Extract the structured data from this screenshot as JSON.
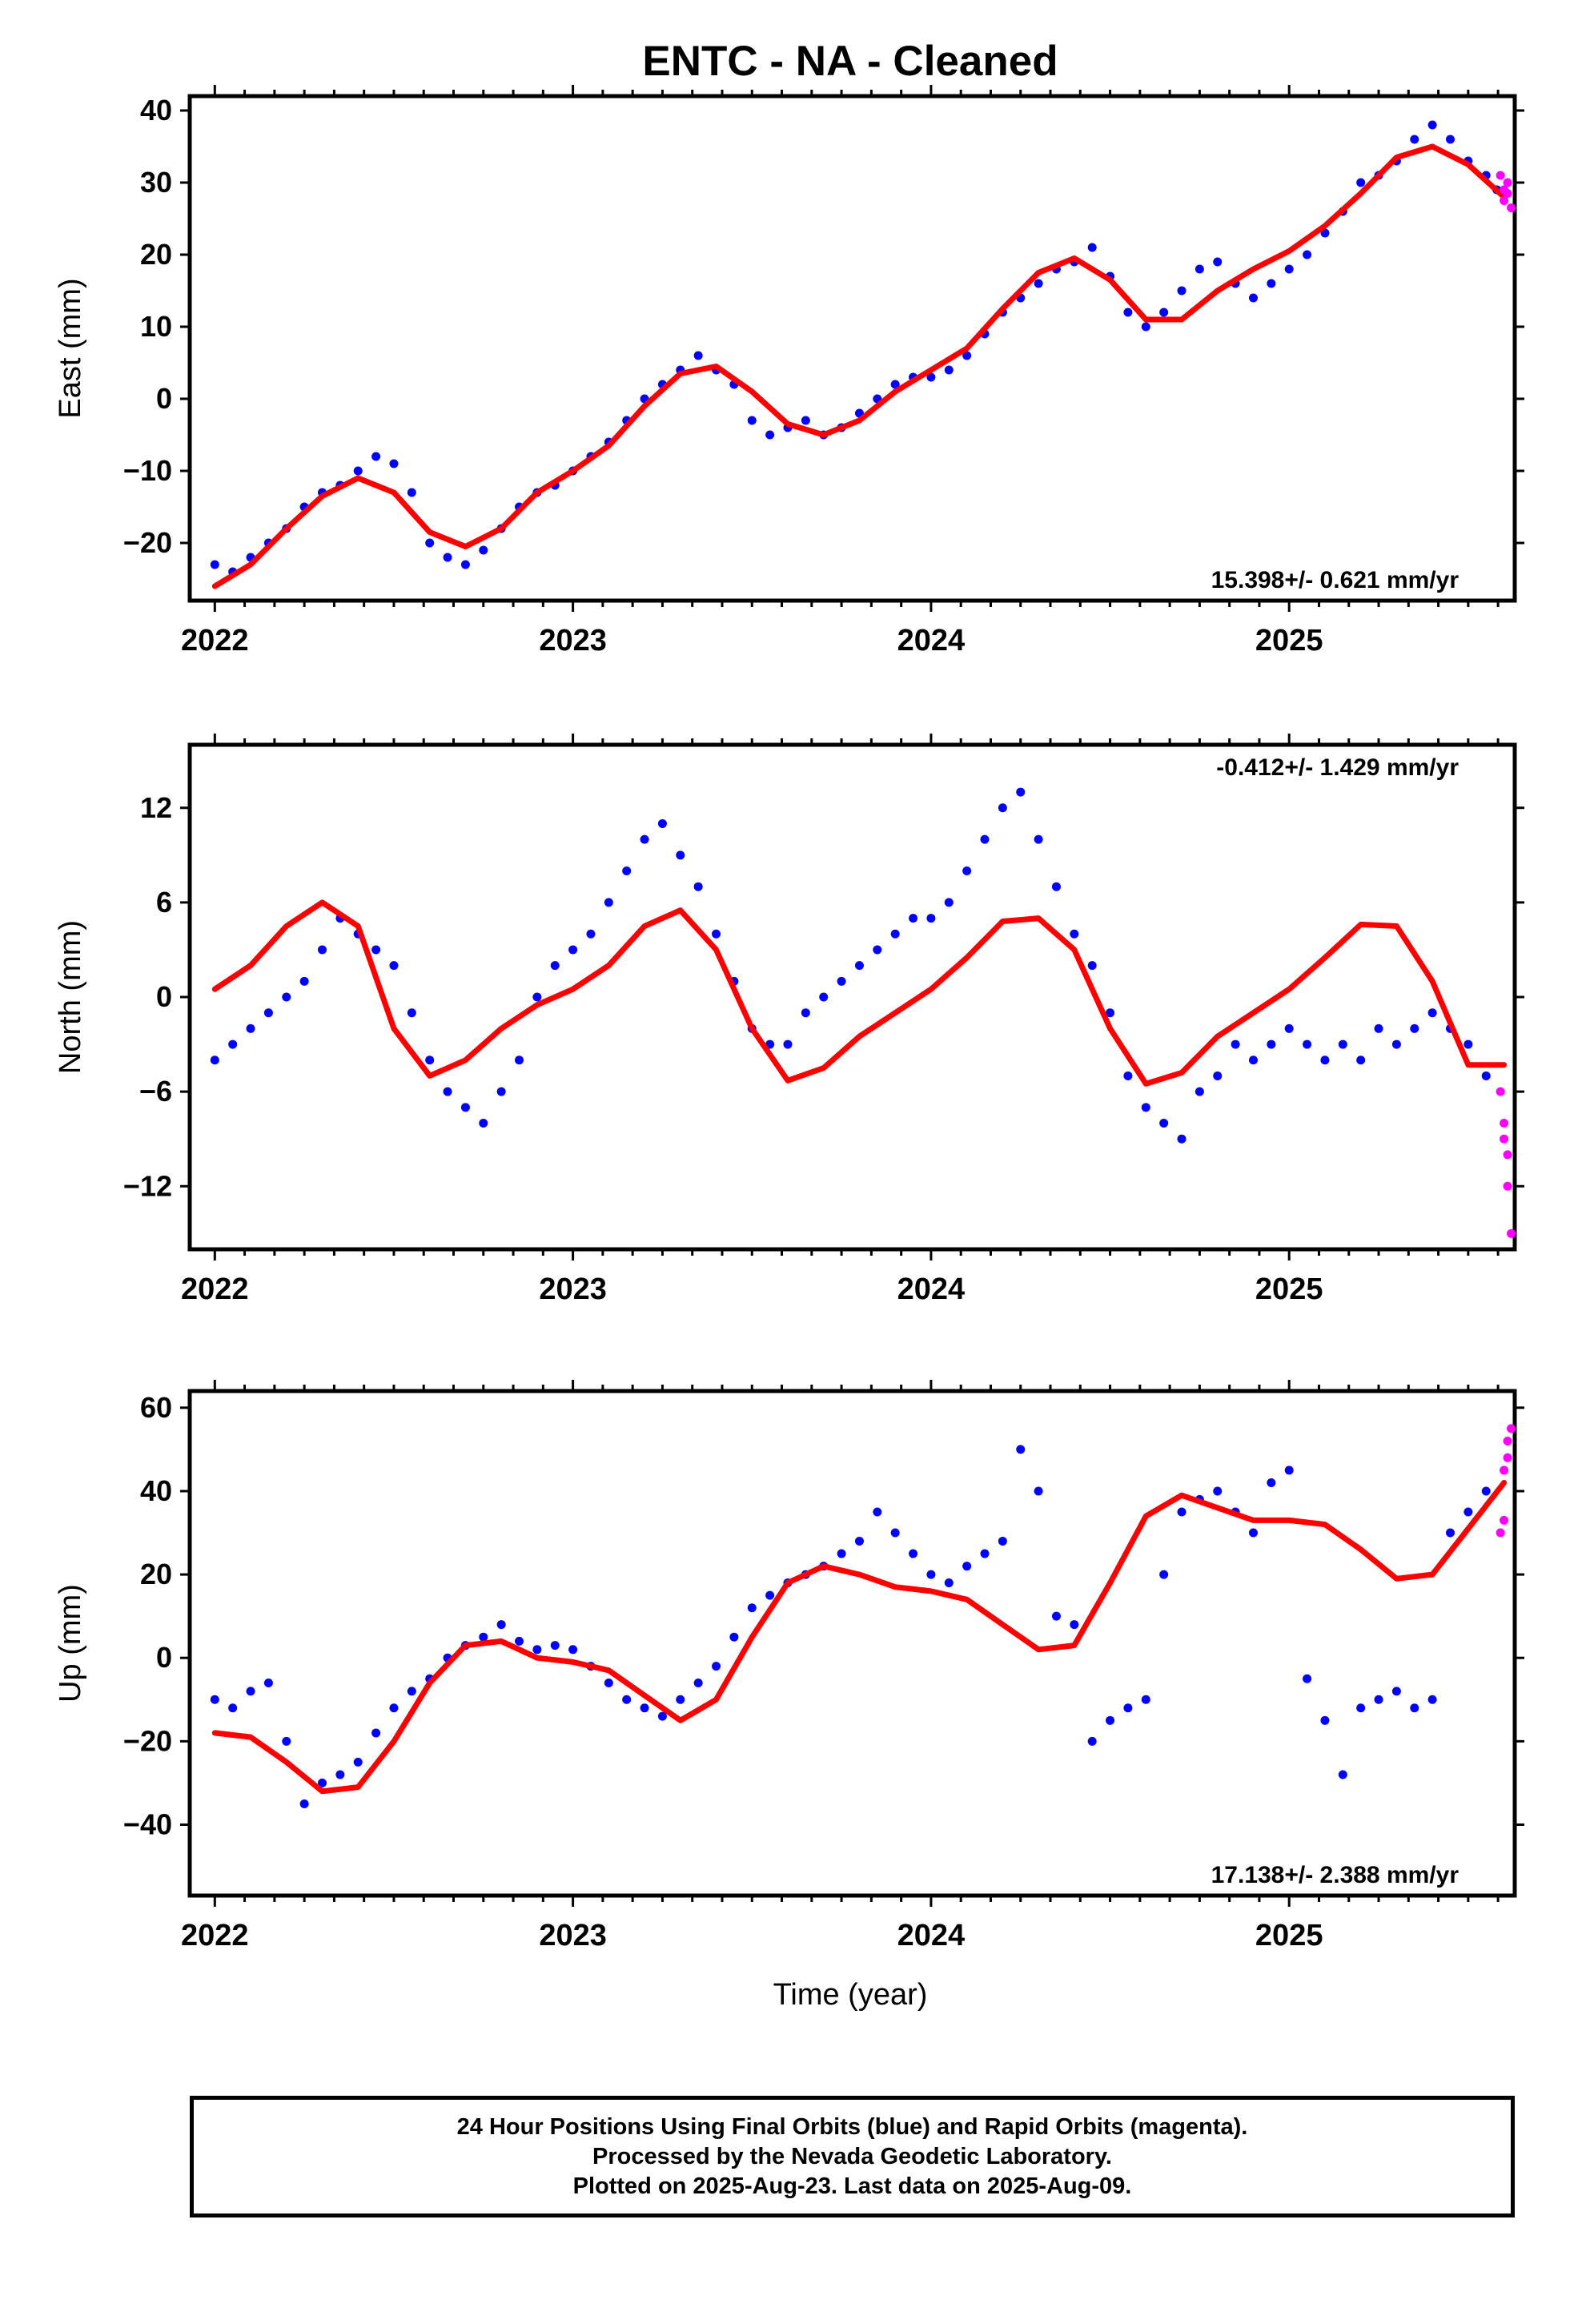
{
  "title": "ENTC  - NA - Cleaned",
  "xlabel": "Time (year)",
  "footer": {
    "line1": "24 Hour Positions Using Final Orbits (blue) and Rapid Orbits (magenta).",
    "line2": "Processed by the Nevada Geodetic Laboratory.",
    "line3": "Plotted on 2025-Aug-23. Last data on 2025-Aug-09."
  },
  "colors": {
    "final": "#0000ff",
    "rapid": "#ff00ff",
    "model": "#ff0000",
    "axis": "#000000"
  },
  "chart_data": [
    {
      "type": "scatter",
      "ylabel": "East (mm)",
      "rate": "15.398+/- 0.621 mm/yr",
      "rate_position": "bottom-right",
      "xlim": [
        1.0,
        7.0
      ],
      "xlim_years": [
        2021.93,
        2025.63
      ],
      "ylim": [
        -28,
        42
      ],
      "yticks": [
        -20,
        -10,
        0,
        10,
        20,
        30,
        40
      ],
      "xticks": [
        2022,
        2023,
        2024,
        2025
      ],
      "model_curve": {
        "x": [
          2022.0,
          2022.1,
          2022.2,
          2022.3,
          2022.4,
          2022.5,
          2022.6,
          2022.7,
          2022.8,
          2022.9,
          2023.0,
          2023.1,
          2023.2,
          2023.3,
          2023.4,
          2023.5,
          2023.6,
          2023.7,
          2023.8,
          2023.9,
          2024.0,
          2024.1,
          2024.2,
          2024.3,
          2024.4,
          2024.5,
          2024.6,
          2024.7,
          2024.8,
          2024.9,
          2025.0,
          2025.1,
          2025.2,
          2025.3,
          2025.4,
          2025.5,
          2025.6
        ],
        "y": [
          -26,
          -23,
          -18,
          -13.5,
          -11,
          -13,
          -18.5,
          -20.5,
          -18,
          -13,
          -10,
          -6.5,
          -1,
          3.5,
          4.5,
          1,
          -3.5,
          -5,
          -3,
          1,
          4,
          7,
          12.5,
          17.5,
          19.5,
          16.5,
          11,
          11,
          15,
          18,
          20.5,
          24,
          28.5,
          33.5,
          35,
          32.5,
          28
        ]
      },
      "final_points": {
        "x": [
          2022.0,
          2022.05,
          2022.1,
          2022.15,
          2022.2,
          2022.25,
          2022.3,
          2022.35,
          2022.4,
          2022.45,
          2022.5,
          2022.55,
          2022.6,
          2022.65,
          2022.7,
          2022.75,
          2022.8,
          2022.85,
          2022.9,
          2022.95,
          2023.0,
          2023.05,
          2023.1,
          2023.15,
          2023.2,
          2023.25,
          2023.3,
          2023.35,
          2023.4,
          2023.45,
          2023.5,
          2023.55,
          2023.6,
          2023.65,
          2023.7,
          2023.75,
          2023.8,
          2023.85,
          2023.9,
          2023.95,
          2024.0,
          2024.05,
          2024.1,
          2024.15,
          2024.2,
          2024.25,
          2024.3,
          2024.35,
          2024.4,
          2024.45,
          2024.5,
          2024.55,
          2024.6,
          2024.65,
          2024.7,
          2024.75,
          2024.8,
          2024.85,
          2024.9,
          2024.95,
          2025.0,
          2025.05,
          2025.1,
          2025.15,
          2025.2,
          2025.25,
          2025.3,
          2025.35,
          2025.4,
          2025.45,
          2025.5,
          2025.55,
          2025.58
        ],
        "y": [
          -23,
          -24,
          -22,
          -20,
          -18,
          -15,
          -13,
          -12,
          -10,
          -8,
          -9,
          -13,
          -20,
          -22,
          -23,
          -21,
          -18,
          -15,
          -13,
          -12,
          -10,
          -8,
          -6,
          -3,
          0,
          2,
          4,
          6,
          4,
          2,
          -3,
          -5,
          -4,
          -3,
          -5,
          -4,
          -2,
          0,
          2,
          3,
          3,
          4,
          6,
          9,
          12,
          14,
          16,
          18,
          19,
          21,
          17,
          12,
          10,
          12,
          15,
          18,
          19,
          16,
          14,
          16,
          18,
          20,
          23,
          26,
          30,
          31,
          33,
          36,
          38,
          36,
          33,
          31,
          29
        ]
      },
      "rapid_points": {
        "x": [
          2025.59,
          2025.6,
          2025.6,
          2025.61,
          2025.61,
          2025.62
        ],
        "y": [
          31,
          29,
          27.5,
          28.5,
          30,
          26.5
        ]
      }
    },
    {
      "type": "scatter",
      "ylabel": "North (mm)",
      "rate": "-0.412+/- 1.429 mm/yr",
      "rate_position": "top-right",
      "xlim": [
        1.0,
        7.0
      ],
      "xlim_years": [
        2021.93,
        2025.63
      ],
      "ylim": [
        -16,
        16
      ],
      "yticks": [
        -12,
        -6,
        0,
        6,
        12
      ],
      "xticks": [
        2022,
        2023,
        2024,
        2025
      ],
      "model_curve": {
        "x": [
          2022.0,
          2022.1,
          2022.2,
          2022.3,
          2022.4,
          2022.5,
          2022.6,
          2022.7,
          2022.8,
          2022.9,
          2023.0,
          2023.1,
          2023.2,
          2023.3,
          2023.4,
          2023.5,
          2023.6,
          2023.7,
          2023.8,
          2023.9,
          2024.0,
          2024.1,
          2024.2,
          2024.3,
          2024.4,
          2024.5,
          2024.6,
          2024.7,
          2024.8,
          2024.9,
          2025.0,
          2025.1,
          2025.2,
          2025.3,
          2025.4,
          2025.5,
          2025.6
        ],
        "y": [
          0.5,
          2,
          4.5,
          6,
          4.5,
          -2,
          -5,
          -4,
          -2,
          -0.5,
          0.5,
          2,
          4.5,
          5.5,
          3,
          -2,
          -5.3,
          -4.5,
          -2.5,
          -1,
          0.5,
          2.5,
          4.8,
          5,
          3,
          -2,
          -5.5,
          -4.8,
          -2.5,
          -1,
          0.5,
          2.5,
          4.6,
          4.5,
          1,
          -4.3,
          -4.3
        ]
      },
      "final_points": {
        "x": [
          2022.0,
          2022.05,
          2022.1,
          2022.15,
          2022.2,
          2022.25,
          2022.3,
          2022.35,
          2022.4,
          2022.45,
          2022.5,
          2022.55,
          2022.6,
          2022.65,
          2022.7,
          2022.75,
          2022.8,
          2022.85,
          2022.9,
          2022.95,
          2023.0,
          2023.05,
          2023.1,
          2023.15,
          2023.2,
          2023.25,
          2023.3,
          2023.35,
          2023.4,
          2023.45,
          2023.5,
          2023.55,
          2023.6,
          2023.65,
          2023.7,
          2023.75,
          2023.8,
          2023.85,
          2023.9,
          2023.95,
          2024.0,
          2024.05,
          2024.1,
          2024.15,
          2024.2,
          2024.25,
          2024.3,
          2024.35,
          2024.4,
          2024.45,
          2024.5,
          2024.55,
          2024.6,
          2024.65,
          2024.7,
          2024.75,
          2024.8,
          2024.85,
          2024.9,
          2024.95,
          2025.0,
          2025.05,
          2025.1,
          2025.15,
          2025.2,
          2025.25,
          2025.3,
          2025.35,
          2025.4,
          2025.45,
          2025.5,
          2025.55
        ],
        "y": [
          -4,
          -3,
          -2,
          -1,
          0,
          1,
          3,
          5,
          4,
          3,
          2,
          -1,
          -4,
          -6,
          -7,
          -8,
          -6,
          -4,
          0,
          2,
          3,
          4,
          6,
          8,
          10,
          11,
          9,
          7,
          4,
          1,
          -2,
          -3,
          -3,
          -1,
          0,
          1,
          2,
          3,
          4,
          5,
          5,
          6,
          8,
          10,
          12,
          13,
          10,
          7,
          4,
          2,
          -1,
          -5,
          -7,
          -8,
          -9,
          -6,
          -5,
          -3,
          -4,
          -3,
          -2,
          -3,
          -4,
          -3,
          -4,
          -2,
          -3,
          -2,
          -1,
          -2,
          -3,
          -5
        ]
      },
      "rapid_points": {
        "x": [
          2025.59,
          2025.6,
          2025.6,
          2025.61,
          2025.61,
          2025.62
        ],
        "y": [
          -6,
          -8,
          -9,
          -10,
          -12,
          -15
        ]
      }
    },
    {
      "type": "scatter",
      "ylabel": "Up (mm)",
      "rate": "17.138+/- 2.388 mm/yr",
      "rate_position": "bottom-right",
      "xlim": [
        1.0,
        7.0
      ],
      "xlim_years": [
        2021.93,
        2025.63
      ],
      "ylim": [
        -57,
        64
      ],
      "yticks": [
        -40,
        -20,
        0,
        20,
        40,
        60
      ],
      "xticks": [
        2022,
        2023,
        2024,
        2025
      ],
      "model_curve": {
        "x": [
          2022.0,
          2022.1,
          2022.2,
          2022.3,
          2022.4,
          2022.5,
          2022.6,
          2022.7,
          2022.8,
          2022.9,
          2023.0,
          2023.1,
          2023.2,
          2023.3,
          2023.4,
          2023.5,
          2023.6,
          2023.7,
          2023.8,
          2023.9,
          2024.0,
          2024.1,
          2024.2,
          2024.3,
          2024.4,
          2024.5,
          2024.6,
          2024.7,
          2024.8,
          2024.9,
          2025.0,
          2025.1,
          2025.2,
          2025.3,
          2025.4,
          2025.5,
          2025.6
        ],
        "y": [
          -18,
          -19,
          -25,
          -32,
          -31,
          -20,
          -6,
          3,
          4,
          0,
          -1,
          -3,
          -9,
          -15,
          -10,
          5,
          18,
          22,
          20,
          17,
          16,
          14,
          8,
          2,
          3,
          18,
          34,
          39,
          36,
          33,
          33,
          32,
          26,
          19,
          20,
          31,
          42
        ]
      },
      "final_points": {
        "x": [
          2022.0,
          2022.05,
          2022.1,
          2022.15,
          2022.2,
          2022.25,
          2022.3,
          2022.35,
          2022.4,
          2022.45,
          2022.5,
          2022.55,
          2022.6,
          2022.65,
          2022.7,
          2022.75,
          2022.8,
          2022.85,
          2022.9,
          2022.95,
          2023.0,
          2023.05,
          2023.1,
          2023.15,
          2023.2,
          2023.25,
          2023.3,
          2023.35,
          2023.4,
          2023.45,
          2023.5,
          2023.55,
          2023.6,
          2023.65,
          2023.7,
          2023.75,
          2023.8,
          2023.85,
          2023.9,
          2023.95,
          2024.0,
          2024.05,
          2024.1,
          2024.15,
          2024.2,
          2024.25,
          2024.3,
          2024.35,
          2024.4,
          2024.45,
          2024.5,
          2024.55,
          2024.6,
          2024.65,
          2024.7,
          2024.75,
          2024.8,
          2024.85,
          2024.9,
          2024.95,
          2025.0,
          2025.05,
          2025.1,
          2025.15,
          2025.2,
          2025.25,
          2025.3,
          2025.35,
          2025.4,
          2025.45,
          2025.5,
          2025.55
        ],
        "y": [
          -10,
          -12,
          -8,
          -6,
          -20,
          -35,
          -30,
          -28,
          -25,
          -18,
          -12,
          -8,
          -5,
          0,
          3,
          5,
          8,
          4,
          2,
          3,
          2,
          -2,
          -6,
          -10,
          -12,
          -14,
          -10,
          -6,
          -2,
          5,
          12,
          15,
          18,
          20,
          22,
          25,
          28,
          35,
          30,
          25,
          20,
          18,
          22,
          25,
          28,
          50,
          40,
          10,
          8,
          -20,
          -15,
          -12,
          -10,
          20,
          35,
          38,
          40,
          35,
          30,
          42,
          45,
          -5,
          -15,
          -28,
          -12,
          -10,
          -8,
          -12,
          -10,
          30,
          35,
          40
        ]
      },
      "rapid_points": {
        "x": [
          2025.59,
          2025.6,
          2025.6,
          2025.61,
          2025.61,
          2025.62
        ],
        "y": [
          30,
          33,
          45,
          48,
          52,
          55
        ]
      }
    }
  ]
}
